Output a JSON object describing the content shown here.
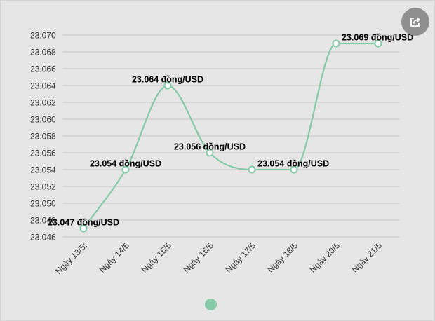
{
  "share_icon": "share-icon",
  "colors": {
    "line": "#86c9a6",
    "point_fill": "#ffffff",
    "grid": "#c6c6c6",
    "background": "#e6e6e6"
  },
  "chart_data": {
    "type": "line",
    "title": "",
    "xlabel": "",
    "ylabel": "",
    "categories": [
      "Ngày 13/5:",
      "Ngày 14/5",
      "Ngày 15/5",
      "Ngày 16/5",
      "Ngày 17/5",
      "Ngày 18/5",
      "Ngày 20/5",
      "Ngày 21/5"
    ],
    "series": [
      {
        "values": [
          23047,
          23054,
          23064,
          23056,
          23054,
          23054,
          23069,
          23069
        ]
      }
    ],
    "data_labels": [
      "23.047 đồng/USD",
      "23.054 đồng/USD",
      "23.064 đồng/USD",
      "23.056 đồng/USD",
      "",
      "23.054 đồng/USD",
      "",
      "23.069 đồng/USD"
    ],
    "yticks": [
      "23.046",
      "23.048",
      "23.050",
      "23.052",
      "23.054",
      "23.056",
      "23.058",
      "23.060",
      "23.062",
      "23.064",
      "23.066",
      "23.068",
      "23.070"
    ],
    "ylim": [
      23046,
      23070
    ],
    "grid": true,
    "legend": "bottom"
  }
}
